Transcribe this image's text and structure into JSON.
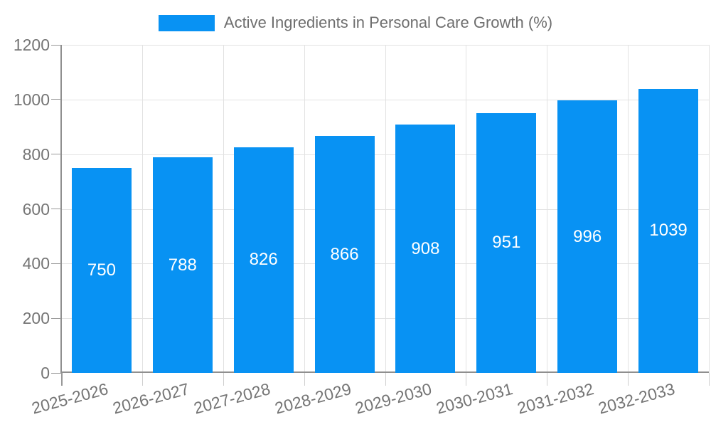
{
  "legend": {
    "label": "Active Ingredients in Personal Care Growth (%)"
  },
  "chart_data": {
    "type": "bar",
    "title": "Active Ingredients in Personal Care Growth (%)",
    "series_name": "Active Ingredients in Personal Care Growth (%)",
    "categories": [
      "2025-2026",
      "2026-2027",
      "2027-2028",
      "2028-2029",
      "2029-2030",
      "2030-2031",
      "2031-2032",
      "2032-2033"
    ],
    "values": [
      750,
      788,
      826,
      866,
      908,
      951,
      996,
      1039
    ],
    "xlabel": "",
    "ylabel": "",
    "ylim": [
      0,
      1200
    ],
    "y_ticks": [
      0,
      200,
      400,
      600,
      800,
      1000,
      1200
    ],
    "grid": true,
    "legend_position": "top-center",
    "bar_label_position": "inside-center",
    "x_label_rotation_deg": -15
  },
  "colors": {
    "bar": "#0892F3",
    "bar_label": "#FFFFFF",
    "axis_line": "#8F8F8F",
    "grid_line": "#E2E2E2",
    "tick_mark": "#999999",
    "boundary_tick": "#CFCFCF",
    "tick_text": "#757575",
    "legend_text": "#6E6E6E",
    "background": "#FFFFFF"
  }
}
